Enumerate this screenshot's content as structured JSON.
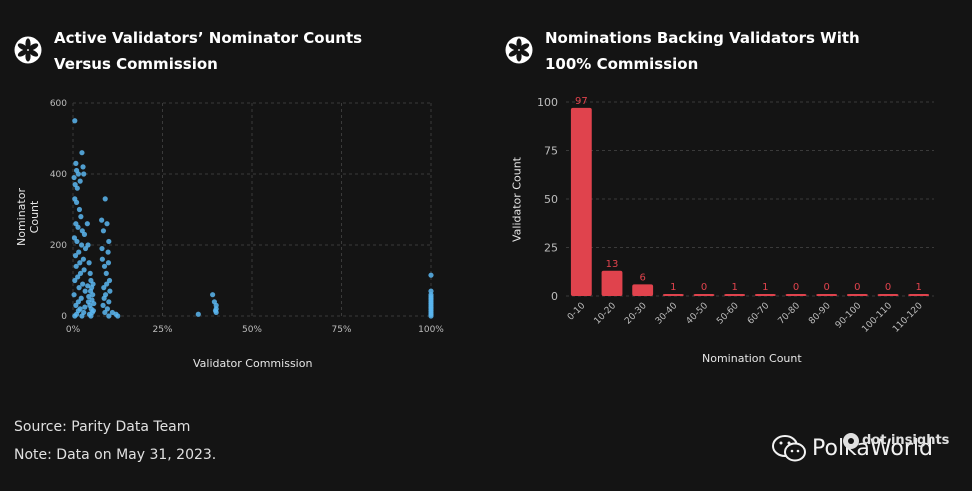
{
  "left_title": "Active Validators’ Nominator Counts Versus Commission",
  "right_title": "Nominations Backing Validators With 100% Commission",
  "footer": {
    "source": "Source: Parity Data Team",
    "note": "Note: Data on May 31, 2023."
  },
  "watermark": "PolkaWorld",
  "brand": "dot insights",
  "colors": {
    "background": "#141414",
    "scatter_point": "#5bb6f0",
    "bar": "#e0434d",
    "bar_label": "#e0434d",
    "axis_text": "#bdbdbd",
    "grid": "#3a3a3a"
  },
  "icons": {
    "title_logo": "flower-logo-icon",
    "watermark": "wechat-icon",
    "brand": "dot-logo-icon"
  },
  "chart_data": [
    {
      "type": "scatter",
      "title": "Active Validators’ Nominator Counts Versus Commission",
      "xlabel": "Validator Commission",
      "ylabel": "Nominator Count",
      "xlim": [
        0,
        100
      ],
      "ylim": [
        0,
        600
      ],
      "xticks": [
        0,
        25,
        50,
        75,
        100
      ],
      "xtick_labels": [
        "0%",
        "25%",
        "50%",
        "75%",
        "100%"
      ],
      "yticks": [
        0,
        200,
        400,
        600
      ],
      "ytick_labels": [
        "0",
        "200",
        "400",
        "600"
      ],
      "grid": true,
      "points": [
        [
          0.5,
          550
        ],
        [
          0.8,
          430
        ],
        [
          1,
          410
        ],
        [
          0.3,
          390
        ],
        [
          1.5,
          400
        ],
        [
          2,
          380
        ],
        [
          0.6,
          370
        ],
        [
          1.2,
          360
        ],
        [
          2.5,
          460
        ],
        [
          2.8,
          420
        ],
        [
          3,
          400
        ],
        [
          0.5,
          330
        ],
        [
          1,
          320
        ],
        [
          1.8,
          300
        ],
        [
          2.2,
          280
        ],
        [
          0.8,
          260
        ],
        [
          1.4,
          250
        ],
        [
          2.6,
          240
        ],
        [
          3.2,
          230
        ],
        [
          0.4,
          220
        ],
        [
          1.1,
          210
        ],
        [
          2.4,
          200
        ],
        [
          3.5,
          190
        ],
        [
          1.6,
          180
        ],
        [
          0.7,
          170
        ],
        [
          2.9,
          160
        ],
        [
          1.9,
          150
        ],
        [
          0.9,
          140
        ],
        [
          3.1,
          130
        ],
        [
          2.1,
          120
        ],
        [
          1.3,
          110
        ],
        [
          0.5,
          100
        ],
        [
          2.7,
          90
        ],
        [
          1.7,
          80
        ],
        [
          3.4,
          70
        ],
        [
          0.3,
          60
        ],
        [
          2.3,
          50
        ],
        [
          1.5,
          40
        ],
        [
          0.8,
          30
        ],
        [
          2,
          20
        ],
        [
          3,
          10
        ],
        [
          1,
          5
        ],
        [
          0.5,
          0
        ],
        [
          2.5,
          0
        ],
        [
          1.5,
          15
        ],
        [
          3.3,
          25
        ],
        [
          4,
          260
        ],
        [
          4.2,
          200
        ],
        [
          4.5,
          150
        ],
        [
          4.8,
          120
        ],
        [
          5,
          100
        ],
        [
          5.2,
          80
        ],
        [
          5.5,
          60
        ],
        [
          4.3,
          40
        ],
        [
          4.7,
          30
        ],
        [
          5.1,
          20
        ],
        [
          5.4,
          10
        ],
        [
          4.6,
          5
        ],
        [
          5,
          0
        ],
        [
          4.4,
          55
        ],
        [
          5.3,
          45
        ],
        [
          4.9,
          70
        ],
        [
          5.6,
          90
        ],
        [
          4.1,
          85
        ],
        [
          5.8,
          35
        ],
        [
          5.7,
          15
        ],
        [
          8,
          270
        ],
        [
          8.5,
          240
        ],
        [
          9,
          330
        ],
        [
          9.5,
          260
        ],
        [
          10,
          210
        ],
        [
          9.8,
          180
        ],
        [
          8.2,
          160
        ],
        [
          8.8,
          140
        ],
        [
          9.3,
          120
        ],
        [
          10.2,
          100
        ],
        [
          8.6,
          80
        ],
        [
          9.1,
          60
        ],
        [
          10,
          40
        ],
        [
          8.4,
          30
        ],
        [
          9.6,
          20
        ],
        [
          8.9,
          10
        ],
        [
          10,
          0
        ],
        [
          8.1,
          190
        ],
        [
          9.9,
          150
        ],
        [
          9.4,
          90
        ],
        [
          8.7,
          50
        ],
        [
          10.3,
          70
        ],
        [
          11,
          10
        ],
        [
          12,
          5
        ],
        [
          12.5,
          0
        ],
        [
          35,
          5
        ],
        [
          39,
          60
        ],
        [
          39.5,
          40
        ],
        [
          40,
          30
        ],
        [
          40,
          20
        ],
        [
          39.8,
          15
        ],
        [
          40,
          10
        ],
        [
          100,
          115
        ],
        [
          100,
          70
        ],
        [
          100,
          60
        ],
        [
          100,
          55
        ],
        [
          100,
          50
        ],
        [
          100,
          45
        ],
        [
          100,
          40
        ],
        [
          100,
          35
        ],
        [
          100,
          30
        ],
        [
          100,
          25
        ],
        [
          100,
          20
        ],
        [
          100,
          15
        ],
        [
          100,
          10
        ],
        [
          100,
          5
        ],
        [
          100,
          0
        ]
      ]
    },
    {
      "type": "bar",
      "title": "Nominations Backing Validators With 100% Commission",
      "xlabel": "Nomination Count",
      "ylabel": "Validator Count",
      "ylim": [
        0,
        100
      ],
      "yticks": [
        0,
        25,
        50,
        75,
        100
      ],
      "grid": true,
      "categories": [
        "0-10",
        "10-20",
        "20-30",
        "30-40",
        "40-50",
        "50-60",
        "60-70",
        "70-80",
        "80-90",
        "90-100",
        "100-110",
        "110-120"
      ],
      "values": [
        97,
        13,
        6,
        1,
        0,
        1,
        1,
        0,
        0,
        0,
        0,
        1
      ]
    }
  ]
}
